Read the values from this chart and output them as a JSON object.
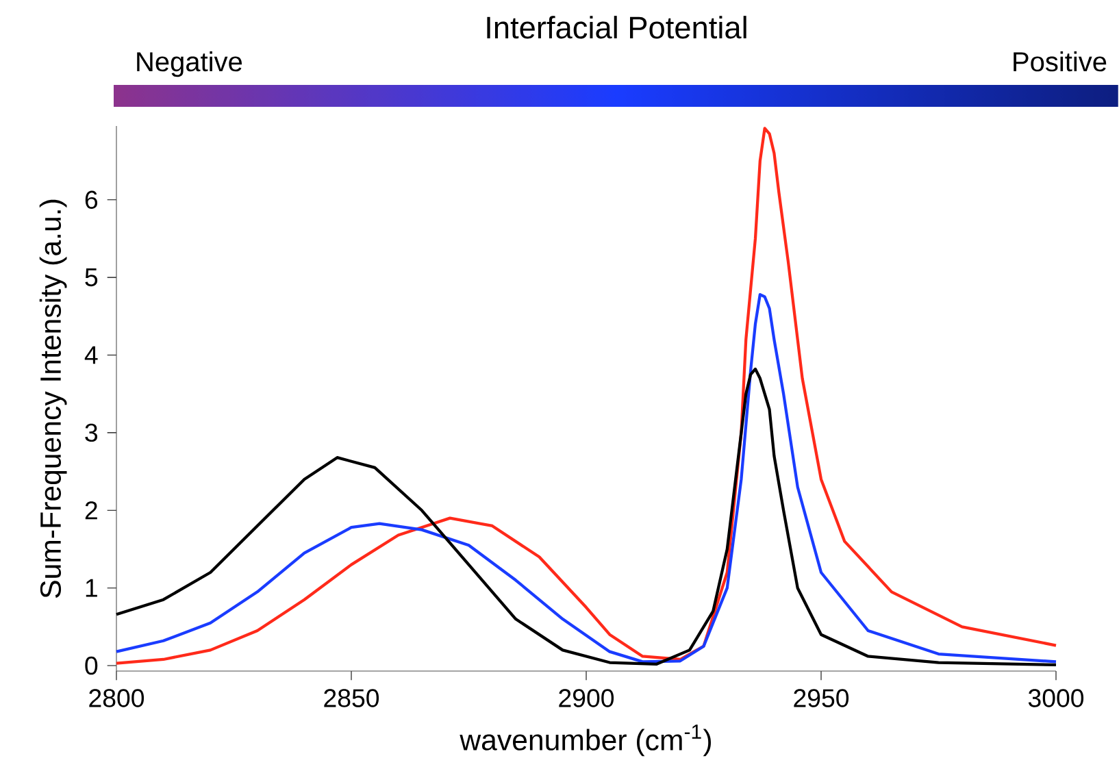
{
  "chart_data": {
    "type": "line",
    "title": "Interfacial Potential",
    "annotations": [
      "Negative",
      "Positive"
    ],
    "xlabel": "wavenumber (cm$^{-1}$)",
    "ylabel": "Sum-Frequency Intensity (a.u.)",
    "xlim": [
      2800,
      3000
    ],
    "ylim": [
      -0.07,
      6.95
    ],
    "xticks": [
      2800,
      2850,
      2900,
      2950,
      3000
    ],
    "yticks": [
      0,
      1,
      2,
      3,
      4,
      5,
      6
    ],
    "marker": "none",
    "line_style": "solid",
    "series": [
      {
        "color": "#ff2a1a",
        "x": [
          2800,
          2810,
          2820,
          2830,
          2840,
          2850,
          2860,
          2871,
          2880,
          2890,
          2900,
          2905,
          2912,
          2920,
          2925,
          2930,
          2933,
          2934,
          2936,
          2937,
          2938,
          2939,
          2940,
          2941,
          2943,
          2946,
          2950,
          2955,
          2965,
          2980,
          3000
        ],
        "values": [
          0.03,
          0.08,
          0.2,
          0.45,
          0.85,
          1.3,
          1.68,
          1.9,
          1.8,
          1.4,
          0.75,
          0.4,
          0.12,
          0.08,
          0.25,
          1.2,
          3.0,
          4.2,
          5.5,
          6.5,
          6.92,
          6.85,
          6.6,
          6.1,
          5.2,
          3.7,
          2.4,
          1.6,
          0.95,
          0.5,
          0.26
        ]
      },
      {
        "color": "#1a3cff",
        "x": [
          2800,
          2810,
          2820,
          2830,
          2840,
          2850,
          2856,
          2865,
          2875,
          2885,
          2895,
          2905,
          2912,
          2920,
          2925,
          2930,
          2933,
          2934,
          2935,
          2936,
          2937,
          2938,
          2939,
          2940,
          2942,
          2945,
          2950,
          2960,
          2975,
          3000
        ],
        "values": [
          0.18,
          0.32,
          0.55,
          0.95,
          1.45,
          1.78,
          1.83,
          1.75,
          1.55,
          1.1,
          0.6,
          0.18,
          0.05,
          0.06,
          0.25,
          1.0,
          2.4,
          3.1,
          3.8,
          4.4,
          4.78,
          4.75,
          4.6,
          4.2,
          3.5,
          2.3,
          1.2,
          0.45,
          0.15,
          0.05
        ]
      },
      {
        "color": "#000000",
        "x": [
          2800,
          2810,
          2820,
          2830,
          2840,
          2847,
          2855,
          2865,
          2875,
          2885,
          2895,
          2905,
          2915,
          2922,
          2927,
          2930,
          2933,
          2934,
          2935,
          2936,
          2937,
          2938,
          2939,
          2940,
          2942,
          2945,
          2950,
          2960,
          2975,
          3000
        ],
        "values": [
          0.66,
          0.85,
          1.2,
          1.8,
          2.4,
          2.68,
          2.55,
          2.0,
          1.3,
          0.6,
          0.2,
          0.04,
          0.02,
          0.2,
          0.7,
          1.5,
          3.0,
          3.5,
          3.75,
          3.82,
          3.7,
          3.5,
          3.3,
          2.7,
          2.0,
          1.0,
          0.4,
          0.12,
          0.04,
          0.01
        ]
      }
    ]
  }
}
